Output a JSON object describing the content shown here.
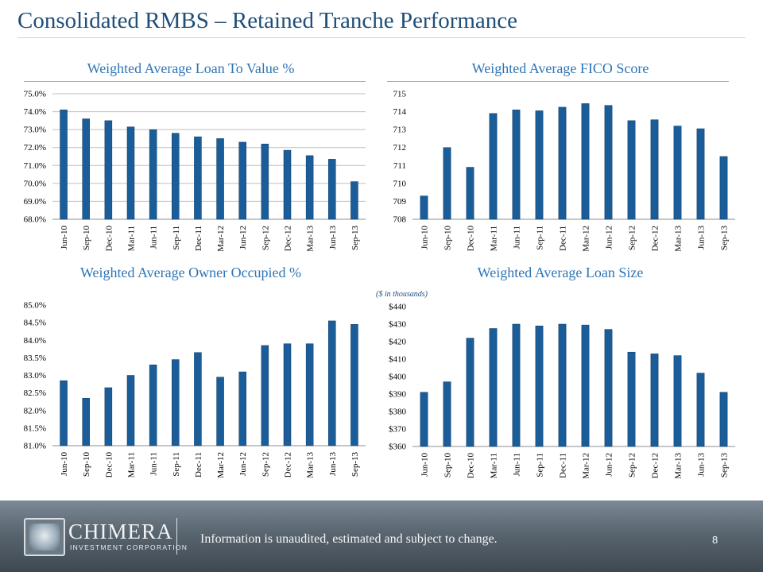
{
  "header": {
    "title": "Consolidated RMBS – Retained Tranche Performance"
  },
  "footer": {
    "logo_name": "CHIMERA",
    "logo_sub": "INVESTMENT CORPORATION",
    "disclaimer": "Information is unaudited, estimated and subject to change.",
    "page_number": "8"
  },
  "colors": {
    "bar": "#1a5d99",
    "title": "#1f4e79",
    "chart_title": "#2e75b6",
    "grid": "#bfbfbf"
  },
  "chart_data": [
    {
      "id": "ltv",
      "type": "bar",
      "title": "Weighted Average Loan To Value %",
      "note": "",
      "categories": [
        "Jun-10",
        "Sep-10",
        "Dec-10",
        "Mar-11",
        "Jun-11",
        "Sep-11",
        "Dec-11",
        "Mar-12",
        "Jun-12",
        "Sep-12",
        "Dec-12",
        "Mar-13",
        "Jun-13",
        "Sep-13"
      ],
      "values": [
        74.1,
        73.6,
        73.5,
        73.15,
        73.0,
        72.8,
        72.6,
        72.5,
        72.3,
        72.2,
        71.85,
        71.55,
        71.35,
        70.1
      ],
      "ylim": [
        68.0,
        75.0
      ],
      "ticks": [
        68.0,
        69.0,
        70.0,
        71.0,
        72.0,
        73.0,
        74.0,
        75.0
      ],
      "tick_format": "pct1",
      "grid": true
    },
    {
      "id": "fico",
      "type": "bar",
      "title": "Weighted Average FICO Score",
      "note": "",
      "categories": [
        "Jun-10",
        "Sep-10",
        "Dec-10",
        "Mar-11",
        "Jun-11",
        "Sep-11",
        "Dec-11",
        "Mar-12",
        "Jun-12",
        "Sep-12",
        "Dec-12",
        "Mar-13",
        "Jun-13",
        "Sep-13"
      ],
      "values": [
        709.3,
        712.0,
        710.9,
        713.9,
        714.1,
        714.05,
        714.25,
        714.45,
        714.35,
        713.5,
        713.55,
        713.2,
        713.05,
        711.5
      ],
      "ylim": [
        708,
        715
      ],
      "ticks": [
        708,
        709,
        710,
        711,
        712,
        713,
        714,
        715
      ],
      "tick_format": "int",
      "grid": false
    },
    {
      "id": "owner",
      "type": "bar",
      "title": "Weighted Average Owner Occupied %",
      "note": "",
      "categories": [
        "Jun-10",
        "Sep-10",
        "Dec-10",
        "Mar-11",
        "Jun-11",
        "Sep-11",
        "Dec-11",
        "Mar-12",
        "Jun-12",
        "Sep-12",
        "Dec-12",
        "Mar-13",
        "Jun-13",
        "Sep-13"
      ],
      "values": [
        82.85,
        82.35,
        82.65,
        83.0,
        83.3,
        83.45,
        83.65,
        82.95,
        83.1,
        83.85,
        83.9,
        83.9,
        84.55,
        84.45
      ],
      "ylim": [
        81.0,
        85.0
      ],
      "ticks": [
        81.0,
        81.5,
        82.0,
        82.5,
        83.0,
        83.5,
        84.0,
        84.5,
        85.0
      ],
      "tick_format": "pct1",
      "grid": false
    },
    {
      "id": "loansize",
      "type": "bar",
      "title": "Weighted Average Loan Size",
      "note": "($ in thousands)",
      "categories": [
        "Jun-10",
        "Sep-10",
        "Dec-10",
        "Mar-11",
        "Jun-11",
        "Sep-11",
        "Dec-11",
        "Mar-12",
        "Jun-12",
        "Sep-12",
        "Dec-12",
        "Mar-13",
        "Jun-13",
        "Sep-13"
      ],
      "values": [
        391,
        397,
        422,
        427.5,
        430,
        429,
        430,
        429.5,
        427,
        414,
        413,
        412,
        402,
        391
      ],
      "ylim": [
        360,
        440
      ],
      "ticks": [
        360,
        370,
        380,
        390,
        400,
        410,
        420,
        430,
        440
      ],
      "tick_format": "dollar",
      "grid": false
    }
  ]
}
